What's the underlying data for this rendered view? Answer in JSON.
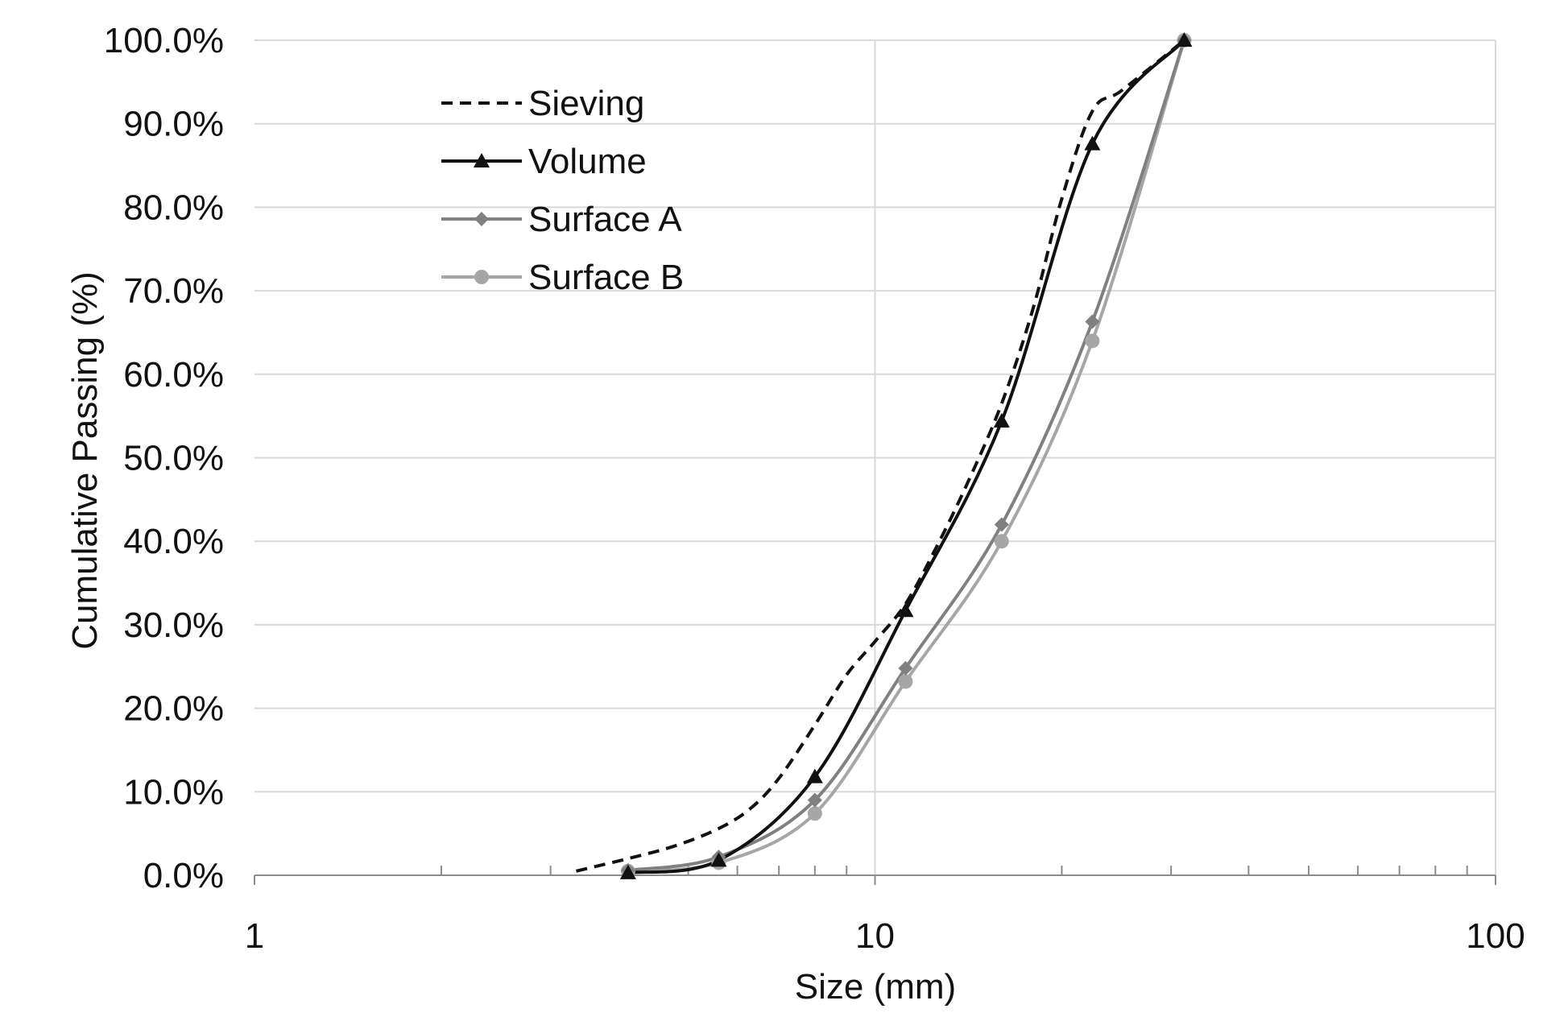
{
  "chart_data": {
    "type": "line",
    "title": "",
    "xlabel": "Size (mm)",
    "ylabel": "Cumulative Passing (%)",
    "x_scale": "log",
    "xlim": [
      1,
      100
    ],
    "ylim": [
      0,
      100
    ],
    "x_ticks": [
      "1",
      "10",
      "100"
    ],
    "y_ticks": [
      "0.0%",
      "10.0%",
      "20.0%",
      "30.0%",
      "40.0%",
      "50.0%",
      "60.0%",
      "70.0%",
      "80.0%",
      "90.0%",
      "100.0%"
    ],
    "grid": true,
    "legend_position": "top-left",
    "series": [
      {
        "name": "Sieving",
        "style": "dashed",
        "marker": "none",
        "color": "#111111",
        "x": [
          3.3,
          4.0,
          4.75,
          5.6,
          6.3,
          7.0,
          8.0,
          9.0,
          10.0,
          11.2,
          12.5,
          14.0,
          16.0,
          18.0,
          20.0,
          22.4,
          25.0,
          31.5
        ],
        "y": [
          0.5,
          2.0,
          3.5,
          5.6,
          8.0,
          11.6,
          18.0,
          24.0,
          28.0,
          32.5,
          39.0,
          46.5,
          56.5,
          68.0,
          81.0,
          91.5,
          94.0,
          100.0
        ]
      },
      {
        "name": "Volume",
        "style": "solid",
        "marker": "triangle",
        "color": "#111111",
        "x": [
          4.0,
          5.6,
          8.0,
          11.2,
          16.0,
          22.4,
          31.5
        ],
        "y": [
          0.3,
          1.8,
          11.8,
          31.7,
          54.4,
          87.6,
          100.0
        ]
      },
      {
        "name": "Surface A",
        "style": "solid",
        "marker": "diamond",
        "color": "#808080",
        "x": [
          4.0,
          5.6,
          8.0,
          11.2,
          16.0,
          22.4,
          31.5
        ],
        "y": [
          0.6,
          2.2,
          9.0,
          24.8,
          42.0,
          66.3,
          100.0
        ]
      },
      {
        "name": "Surface B",
        "style": "solid",
        "marker": "circle",
        "color": "#a6a6a6",
        "x": [
          4.0,
          5.6,
          8.0,
          11.2,
          16.0,
          22.4,
          31.5
        ],
        "y": [
          0.5,
          1.5,
          7.4,
          23.2,
          40.0,
          64.0,
          100.0
        ]
      }
    ]
  }
}
